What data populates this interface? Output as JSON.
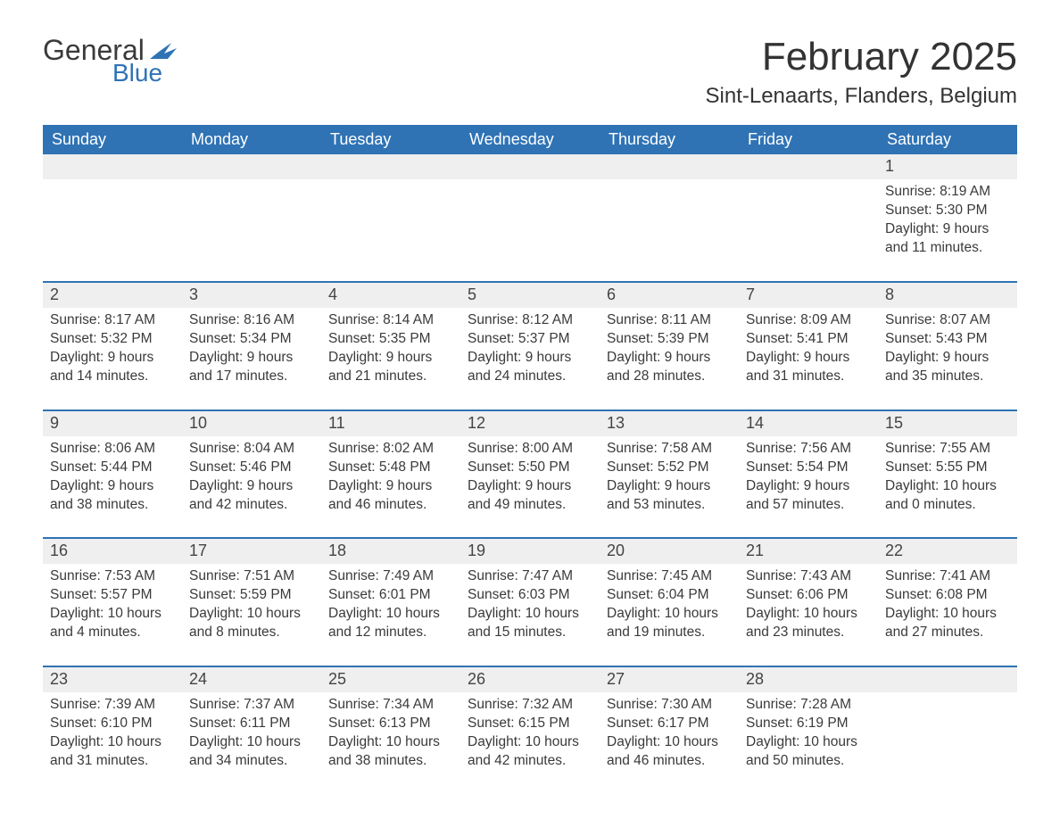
{
  "brand": {
    "word1": "General",
    "word2": "Blue",
    "text_color": "#3a3a3a",
    "accent_color": "#2f73b5"
  },
  "title": "February 2025",
  "location": "Sint-Lenaarts, Flanders, Belgium",
  "colors": {
    "header_bg": "#2f73b5",
    "header_text": "#ffffff",
    "strip_bg": "#efefef",
    "rule": "#2f73b5",
    "body_text": "#3a3a3a",
    "background": "#ffffff"
  },
  "fonts": {
    "title_size_pt": 33,
    "location_size_pt": 18,
    "dow_size_pt": 14,
    "daynum_size_pt": 14,
    "body_size_pt": 12
  },
  "days_of_week": [
    "Sunday",
    "Monday",
    "Tuesday",
    "Wednesday",
    "Thursday",
    "Friday",
    "Saturday"
  ],
  "weeks": [
    [
      null,
      null,
      null,
      null,
      null,
      null,
      {
        "n": "1",
        "sunrise": "Sunrise: 8:19 AM",
        "sunset": "Sunset: 5:30 PM",
        "daylight": "Daylight: 9 hours and 11 minutes."
      }
    ],
    [
      {
        "n": "2",
        "sunrise": "Sunrise: 8:17 AM",
        "sunset": "Sunset: 5:32 PM",
        "daylight": "Daylight: 9 hours and 14 minutes."
      },
      {
        "n": "3",
        "sunrise": "Sunrise: 8:16 AM",
        "sunset": "Sunset: 5:34 PM",
        "daylight": "Daylight: 9 hours and 17 minutes."
      },
      {
        "n": "4",
        "sunrise": "Sunrise: 8:14 AM",
        "sunset": "Sunset: 5:35 PM",
        "daylight": "Daylight: 9 hours and 21 minutes."
      },
      {
        "n": "5",
        "sunrise": "Sunrise: 8:12 AM",
        "sunset": "Sunset: 5:37 PM",
        "daylight": "Daylight: 9 hours and 24 minutes."
      },
      {
        "n": "6",
        "sunrise": "Sunrise: 8:11 AM",
        "sunset": "Sunset: 5:39 PM",
        "daylight": "Daylight: 9 hours and 28 minutes."
      },
      {
        "n": "7",
        "sunrise": "Sunrise: 8:09 AM",
        "sunset": "Sunset: 5:41 PM",
        "daylight": "Daylight: 9 hours and 31 minutes."
      },
      {
        "n": "8",
        "sunrise": "Sunrise: 8:07 AM",
        "sunset": "Sunset: 5:43 PM",
        "daylight": "Daylight: 9 hours and 35 minutes."
      }
    ],
    [
      {
        "n": "9",
        "sunrise": "Sunrise: 8:06 AM",
        "sunset": "Sunset: 5:44 PM",
        "daylight": "Daylight: 9 hours and 38 minutes."
      },
      {
        "n": "10",
        "sunrise": "Sunrise: 8:04 AM",
        "sunset": "Sunset: 5:46 PM",
        "daylight": "Daylight: 9 hours and 42 minutes."
      },
      {
        "n": "11",
        "sunrise": "Sunrise: 8:02 AM",
        "sunset": "Sunset: 5:48 PM",
        "daylight": "Daylight: 9 hours and 46 minutes."
      },
      {
        "n": "12",
        "sunrise": "Sunrise: 8:00 AM",
        "sunset": "Sunset: 5:50 PM",
        "daylight": "Daylight: 9 hours and 49 minutes."
      },
      {
        "n": "13",
        "sunrise": "Sunrise: 7:58 AM",
        "sunset": "Sunset: 5:52 PM",
        "daylight": "Daylight: 9 hours and 53 minutes."
      },
      {
        "n": "14",
        "sunrise": "Sunrise: 7:56 AM",
        "sunset": "Sunset: 5:54 PM",
        "daylight": "Daylight: 9 hours and 57 minutes."
      },
      {
        "n": "15",
        "sunrise": "Sunrise: 7:55 AM",
        "sunset": "Sunset: 5:55 PM",
        "daylight": "Daylight: 10 hours and 0 minutes."
      }
    ],
    [
      {
        "n": "16",
        "sunrise": "Sunrise: 7:53 AM",
        "sunset": "Sunset: 5:57 PM",
        "daylight": "Daylight: 10 hours and 4 minutes."
      },
      {
        "n": "17",
        "sunrise": "Sunrise: 7:51 AM",
        "sunset": "Sunset: 5:59 PM",
        "daylight": "Daylight: 10 hours and 8 minutes."
      },
      {
        "n": "18",
        "sunrise": "Sunrise: 7:49 AM",
        "sunset": "Sunset: 6:01 PM",
        "daylight": "Daylight: 10 hours and 12 minutes."
      },
      {
        "n": "19",
        "sunrise": "Sunrise: 7:47 AM",
        "sunset": "Sunset: 6:03 PM",
        "daylight": "Daylight: 10 hours and 15 minutes."
      },
      {
        "n": "20",
        "sunrise": "Sunrise: 7:45 AM",
        "sunset": "Sunset: 6:04 PM",
        "daylight": "Daylight: 10 hours and 19 minutes."
      },
      {
        "n": "21",
        "sunrise": "Sunrise: 7:43 AM",
        "sunset": "Sunset: 6:06 PM",
        "daylight": "Daylight: 10 hours and 23 minutes."
      },
      {
        "n": "22",
        "sunrise": "Sunrise: 7:41 AM",
        "sunset": "Sunset: 6:08 PM",
        "daylight": "Daylight: 10 hours and 27 minutes."
      }
    ],
    [
      {
        "n": "23",
        "sunrise": "Sunrise: 7:39 AM",
        "sunset": "Sunset: 6:10 PM",
        "daylight": "Daylight: 10 hours and 31 minutes."
      },
      {
        "n": "24",
        "sunrise": "Sunrise: 7:37 AM",
        "sunset": "Sunset: 6:11 PM",
        "daylight": "Daylight: 10 hours and 34 minutes."
      },
      {
        "n": "25",
        "sunrise": "Sunrise: 7:34 AM",
        "sunset": "Sunset: 6:13 PM",
        "daylight": "Daylight: 10 hours and 38 minutes."
      },
      {
        "n": "26",
        "sunrise": "Sunrise: 7:32 AM",
        "sunset": "Sunset: 6:15 PM",
        "daylight": "Daylight: 10 hours and 42 minutes."
      },
      {
        "n": "27",
        "sunrise": "Sunrise: 7:30 AM",
        "sunset": "Sunset: 6:17 PM",
        "daylight": "Daylight: 10 hours and 46 minutes."
      },
      {
        "n": "28",
        "sunrise": "Sunrise: 7:28 AM",
        "sunset": "Sunset: 6:19 PM",
        "daylight": "Daylight: 10 hours and 50 minutes."
      },
      null
    ]
  ]
}
